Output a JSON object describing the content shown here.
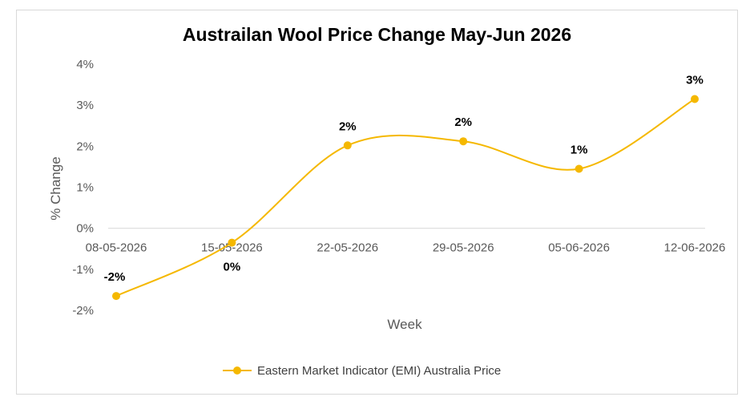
{
  "chart_data": {
    "type": "line",
    "title": "Austrailan Wool Price Change May-Jun 2026",
    "xlabel": "Week",
    "ylabel": "% Change",
    "categories": [
      "08-05-2026",
      "15-05-2026",
      "22-05-2026",
      "29-05-2026",
      "05-06-2026",
      "12-06-2026"
    ],
    "series": [
      {
        "name": "Eastern Market Indicator (EMI) Australia Price",
        "values": [
          -1.65,
          -0.35,
          2.02,
          2.12,
          1.45,
          3.15
        ],
        "labels": [
          "-2%",
          "0%",
          "2%",
          "2%",
          "1%",
          "3%"
        ],
        "color": "#f5b800"
      }
    ],
    "y_ticks": [
      "4%",
      "3%",
      "2%",
      "1%",
      "0%",
      "-1%",
      "-2%"
    ],
    "ylim": [
      -2,
      4
    ],
    "smooth": true,
    "grid": false,
    "legend_position": "bottom"
  }
}
